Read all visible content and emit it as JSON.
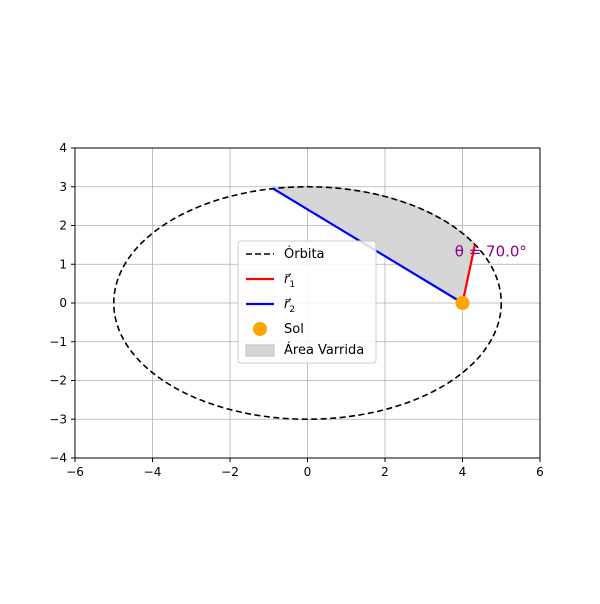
{
  "chart_data": {
    "type": "line",
    "xlim": [
      -6,
      6
    ],
    "ylim": [
      -4,
      4
    ],
    "grid": true,
    "aspect": "equal",
    "x_ticks": [
      -6,
      -4,
      -2,
      0,
      2,
      4,
      6
    ],
    "y_ticks": [
      -4,
      -3,
      -2,
      -1,
      0,
      1,
      2,
      3,
      4
    ],
    "x_tick_labels": [
      "−6",
      "−4",
      "−2",
      "0",
      "2",
      "4",
      "6"
    ],
    "y_tick_labels": [
      "−4",
      "−3",
      "−2",
      "−1",
      "0",
      "1",
      "2",
      "3",
      "4"
    ],
    "orbit": {
      "a": 5,
      "b": 3,
      "center": [
        0,
        0
      ],
      "color": "#000000",
      "style": "dashed"
    },
    "sun": {
      "x": 4,
      "y": 0,
      "color": "#ffa500"
    },
    "r1": {
      "from": [
        4,
        0
      ],
      "to": [
        4.32,
        1.5
      ],
      "color": "#ff0000"
    },
    "r2": {
      "from": [
        4,
        0
      ],
      "to": [
        -0.9,
        2.96
      ],
      "color": "#0000ff"
    },
    "swept_area": {
      "color": "#d6d6d6",
      "edge": "#bdbdbd"
    },
    "annotation": {
      "text": "θ = 70.0°",
      "x": 3.8,
      "y": 1.2,
      "color": "#8b008b"
    },
    "legend": {
      "position": "center",
      "entries": [
        {
          "label": "Órbita",
          "kind": "dashed-line",
          "color": "#000000"
        },
        {
          "label": "r⃗",
          "sub": "1",
          "kind": "line",
          "color": "#ff0000"
        },
        {
          "label": "r⃗",
          "sub": "2",
          "kind": "line",
          "color": "#0000ff"
        },
        {
          "label": "Sol",
          "kind": "marker",
          "color": "#ffa500"
        },
        {
          "label": "Área Varrida",
          "kind": "patch",
          "color": "#d6d6d6"
        }
      ]
    }
  }
}
